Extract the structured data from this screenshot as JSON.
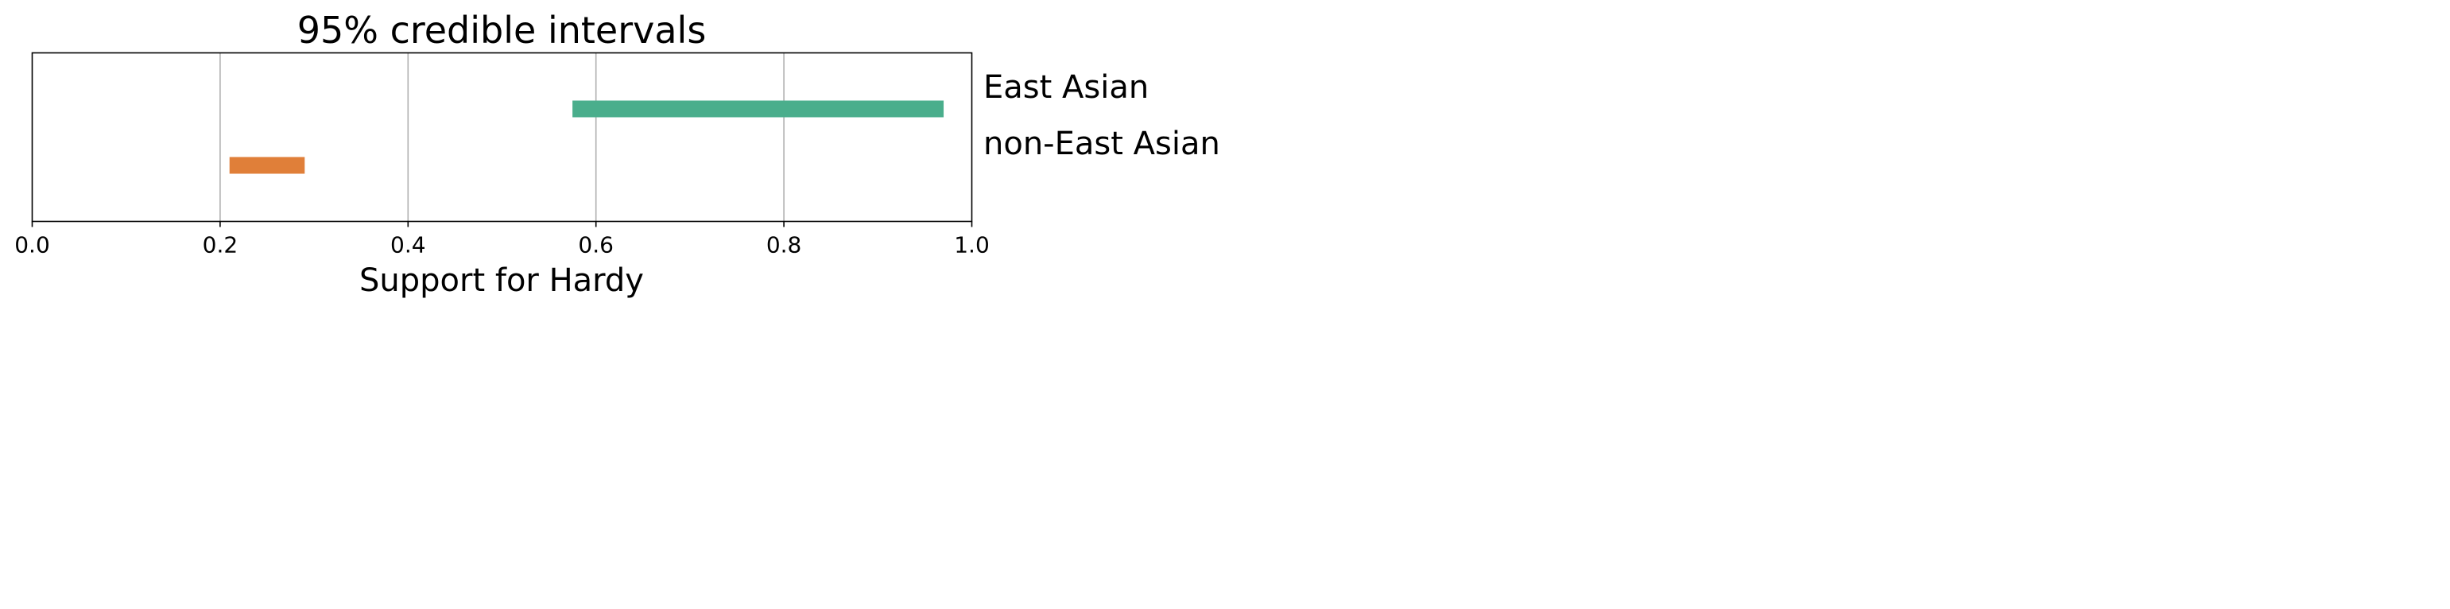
{
  "chart_data": {
    "type": "interval",
    "title": "95% credible intervals",
    "xlabel": "Support for Hardy",
    "ylabel": "",
    "xlim": [
      0.0,
      1.0
    ],
    "xticks": [
      "0.0",
      "0.2",
      "0.4",
      "0.6",
      "0.8",
      "1.0"
    ],
    "grid": "vertical",
    "series": [
      {
        "name": "East Asian",
        "low": 0.575,
        "high": 0.97,
        "color": "#4aae8c"
      },
      {
        "name": "non-East Asian",
        "low": 0.21,
        "high": 0.29,
        "color": "#e07f39"
      }
    ]
  }
}
